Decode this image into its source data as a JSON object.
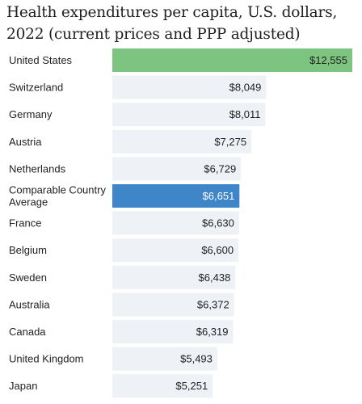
{
  "title": "Health expenditures per capita, U.S. dollars, 2022 (current prices and PPP adjusted)",
  "colors": {
    "default_bar": "#eef1f5",
    "us_bar": "#7cc47f",
    "average_bar": "#3f86c8",
    "default_text": "#1f1f1f",
    "highlight_text": "#ffffff"
  },
  "chart_data": {
    "type": "bar",
    "orientation": "horizontal",
    "title": "Health expenditures per capita, U.S. dollars, 2022 (current prices and PPP adjusted)",
    "xlabel": "",
    "ylabel": "",
    "xlim": [
      0,
      12555
    ],
    "grid": false,
    "value_prefix": "$",
    "categories": [
      "United States",
      "Switzerland",
      "Germany",
      "Austria",
      "Netherlands",
      "Comparable Country Average",
      "France",
      "Belgium",
      "Sweden",
      "Australia",
      "Canada",
      "United Kingdom",
      "Japan"
    ],
    "category_lines": [
      [
        "United States"
      ],
      [
        "Switzerland"
      ],
      [
        "Germany"
      ],
      [
        "Austria"
      ],
      [
        "Netherlands"
      ],
      [
        "Comparable Country",
        "Average"
      ],
      [
        "France"
      ],
      [
        "Belgium"
      ],
      [
        "Sweden"
      ],
      [
        "Australia"
      ],
      [
        "Canada"
      ],
      [
        "United Kingdom"
      ],
      [
        "Japan"
      ]
    ],
    "values": [
      12555,
      8049,
      8011,
      7275,
      6729,
      6651,
      6630,
      6600,
      6438,
      6372,
      6319,
      5493,
      5251
    ],
    "value_labels": [
      "$12,555",
      "$8,049",
      "$8,011",
      "$7,275",
      "$6,729",
      "$6,651",
      "$6,630",
      "$6,600",
      "$6,438",
      "$6,372",
      "$6,319",
      "$5,493",
      "$5,251"
    ],
    "highlights": {
      "United States": "#7cc47f",
      "Comparable Country Average": "#3f86c8"
    }
  }
}
